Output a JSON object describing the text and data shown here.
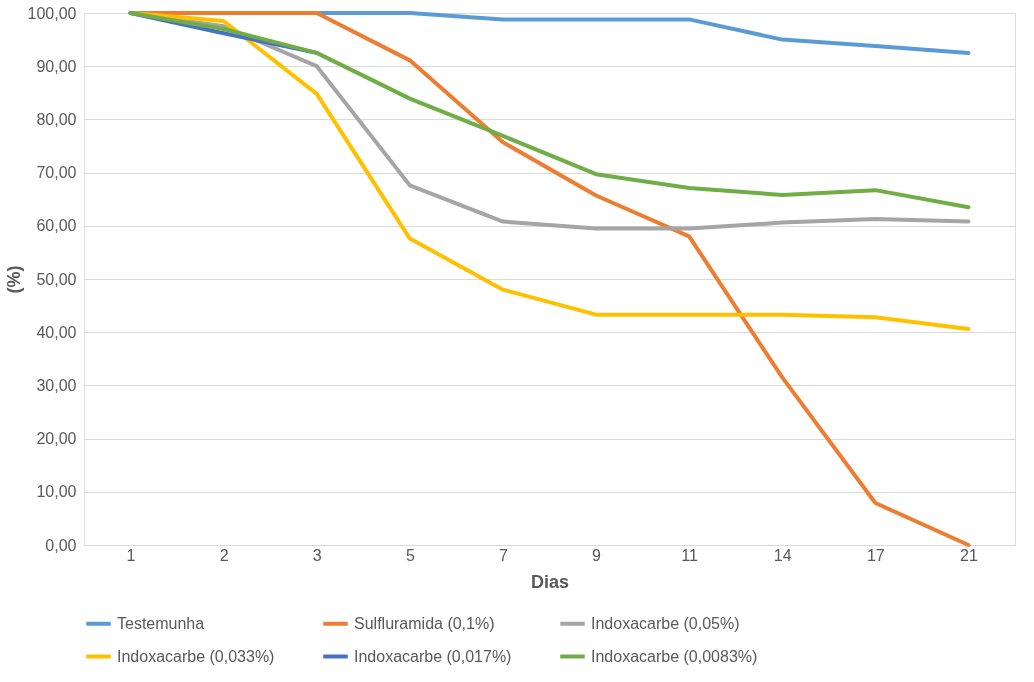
{
  "chart_data": {
    "type": "line",
    "xlabel": "Dias",
    "ylabel": "(%)",
    "categories": [
      "1",
      "2",
      "3",
      "5",
      "7",
      "9",
      "11",
      "14",
      "17",
      "21"
    ],
    "series": [
      {
        "name": "Testemunha",
        "color": "#5b9bd5",
        "values": [
          100,
          100,
          100,
          100,
          98.8,
          98.8,
          98.8,
          95,
          93.8,
          92.5
        ]
      },
      {
        "name": "Sulfluramida (0,1%)",
        "color": "#ed7d31",
        "values": [
          100,
          100,
          100,
          91.1,
          75.7,
          65.7,
          58,
          31.5,
          7.9,
          0
        ]
      },
      {
        "name": "Indoxacarbe (0,05%)",
        "color": "#a5a5a5",
        "values": [
          100,
          97.5,
          90,
          67.6,
          60.8,
          59.5,
          59.5,
          60.6,
          61.3,
          60.8
        ]
      },
      {
        "name": "Indoxacarbe (0,033%)",
        "color": "#ffc000",
        "values": [
          100,
          98.5,
          84.8,
          57.6,
          48,
          43.3,
          43.3,
          43.3,
          42.8,
          40.6
        ]
      },
      {
        "name": "Indoxacarbe (0,017%)",
        "color": "#4472c4",
        "values": [
          100,
          96.2,
          92.5,
          null,
          null,
          null,
          null,
          null,
          null,
          null
        ]
      },
      {
        "name": "Indoxacarbe (0,0083%)",
        "color": "#70ad47",
        "values": [
          100,
          97,
          92.5,
          83.9,
          76.9,
          69.7,
          67.1,
          65.8,
          66.7,
          63.5
        ]
      }
    ],
    "ylim": [
      0,
      100
    ],
    "yticks": [
      {
        "value": 0,
        "label": "0,00"
      },
      {
        "value": 10,
        "label": "10,00"
      },
      {
        "value": 20,
        "label": "20,00"
      },
      {
        "value": 30,
        "label": "30,00"
      },
      {
        "value": 40,
        "label": "40,00"
      },
      {
        "value": 50,
        "label": "50,00"
      },
      {
        "value": 60,
        "label": "60,00"
      },
      {
        "value": 70,
        "label": "70,00"
      },
      {
        "value": 80,
        "label": "80,00"
      },
      {
        "value": 90,
        "label": "90,00"
      },
      {
        "value": 100,
        "label": "100,00"
      }
    ],
    "grid": "y",
    "legend": "bottom",
    "marker": "none",
    "line_style": "solid"
  }
}
